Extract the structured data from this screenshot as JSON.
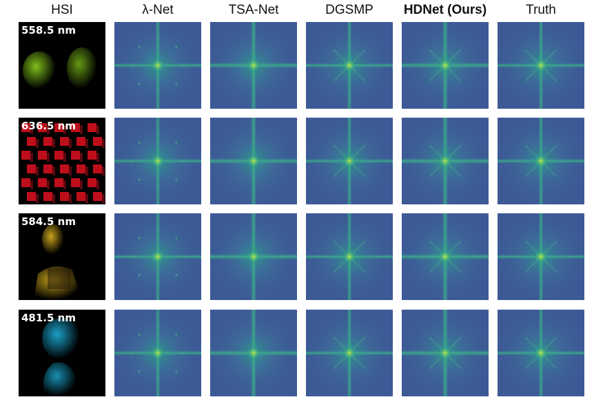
{
  "columns": [
    {
      "label": "HSI",
      "bold": false
    },
    {
      "label": "λ-Net",
      "bold": false
    },
    {
      "label": "TSA-Net",
      "bold": false
    },
    {
      "label": "DGSMP",
      "bold": false
    },
    {
      "label": "HDNet (Ours)",
      "bold": true
    },
    {
      "label": "Truth",
      "bold": false
    }
  ],
  "rows": [
    {
      "wavelength": "558.5 nm",
      "scene": "fruit",
      "tint": "#7fbf1a"
    },
    {
      "wavelength": "636.5 nm",
      "scene": "cubes",
      "tint": "#e01020"
    },
    {
      "wavelength": "584.5 nm",
      "scene": "figurine",
      "tint": "#c8a21c"
    },
    {
      "wavelength": "481.5 nm",
      "scene": "statue",
      "tint": "#1ba0c8"
    }
  ],
  "colors": {
    "spectrum_background": "#3d5a96",
    "spectrum_mid": "#2f8c8c",
    "spectrum_peak": "#c8e64a"
  }
}
